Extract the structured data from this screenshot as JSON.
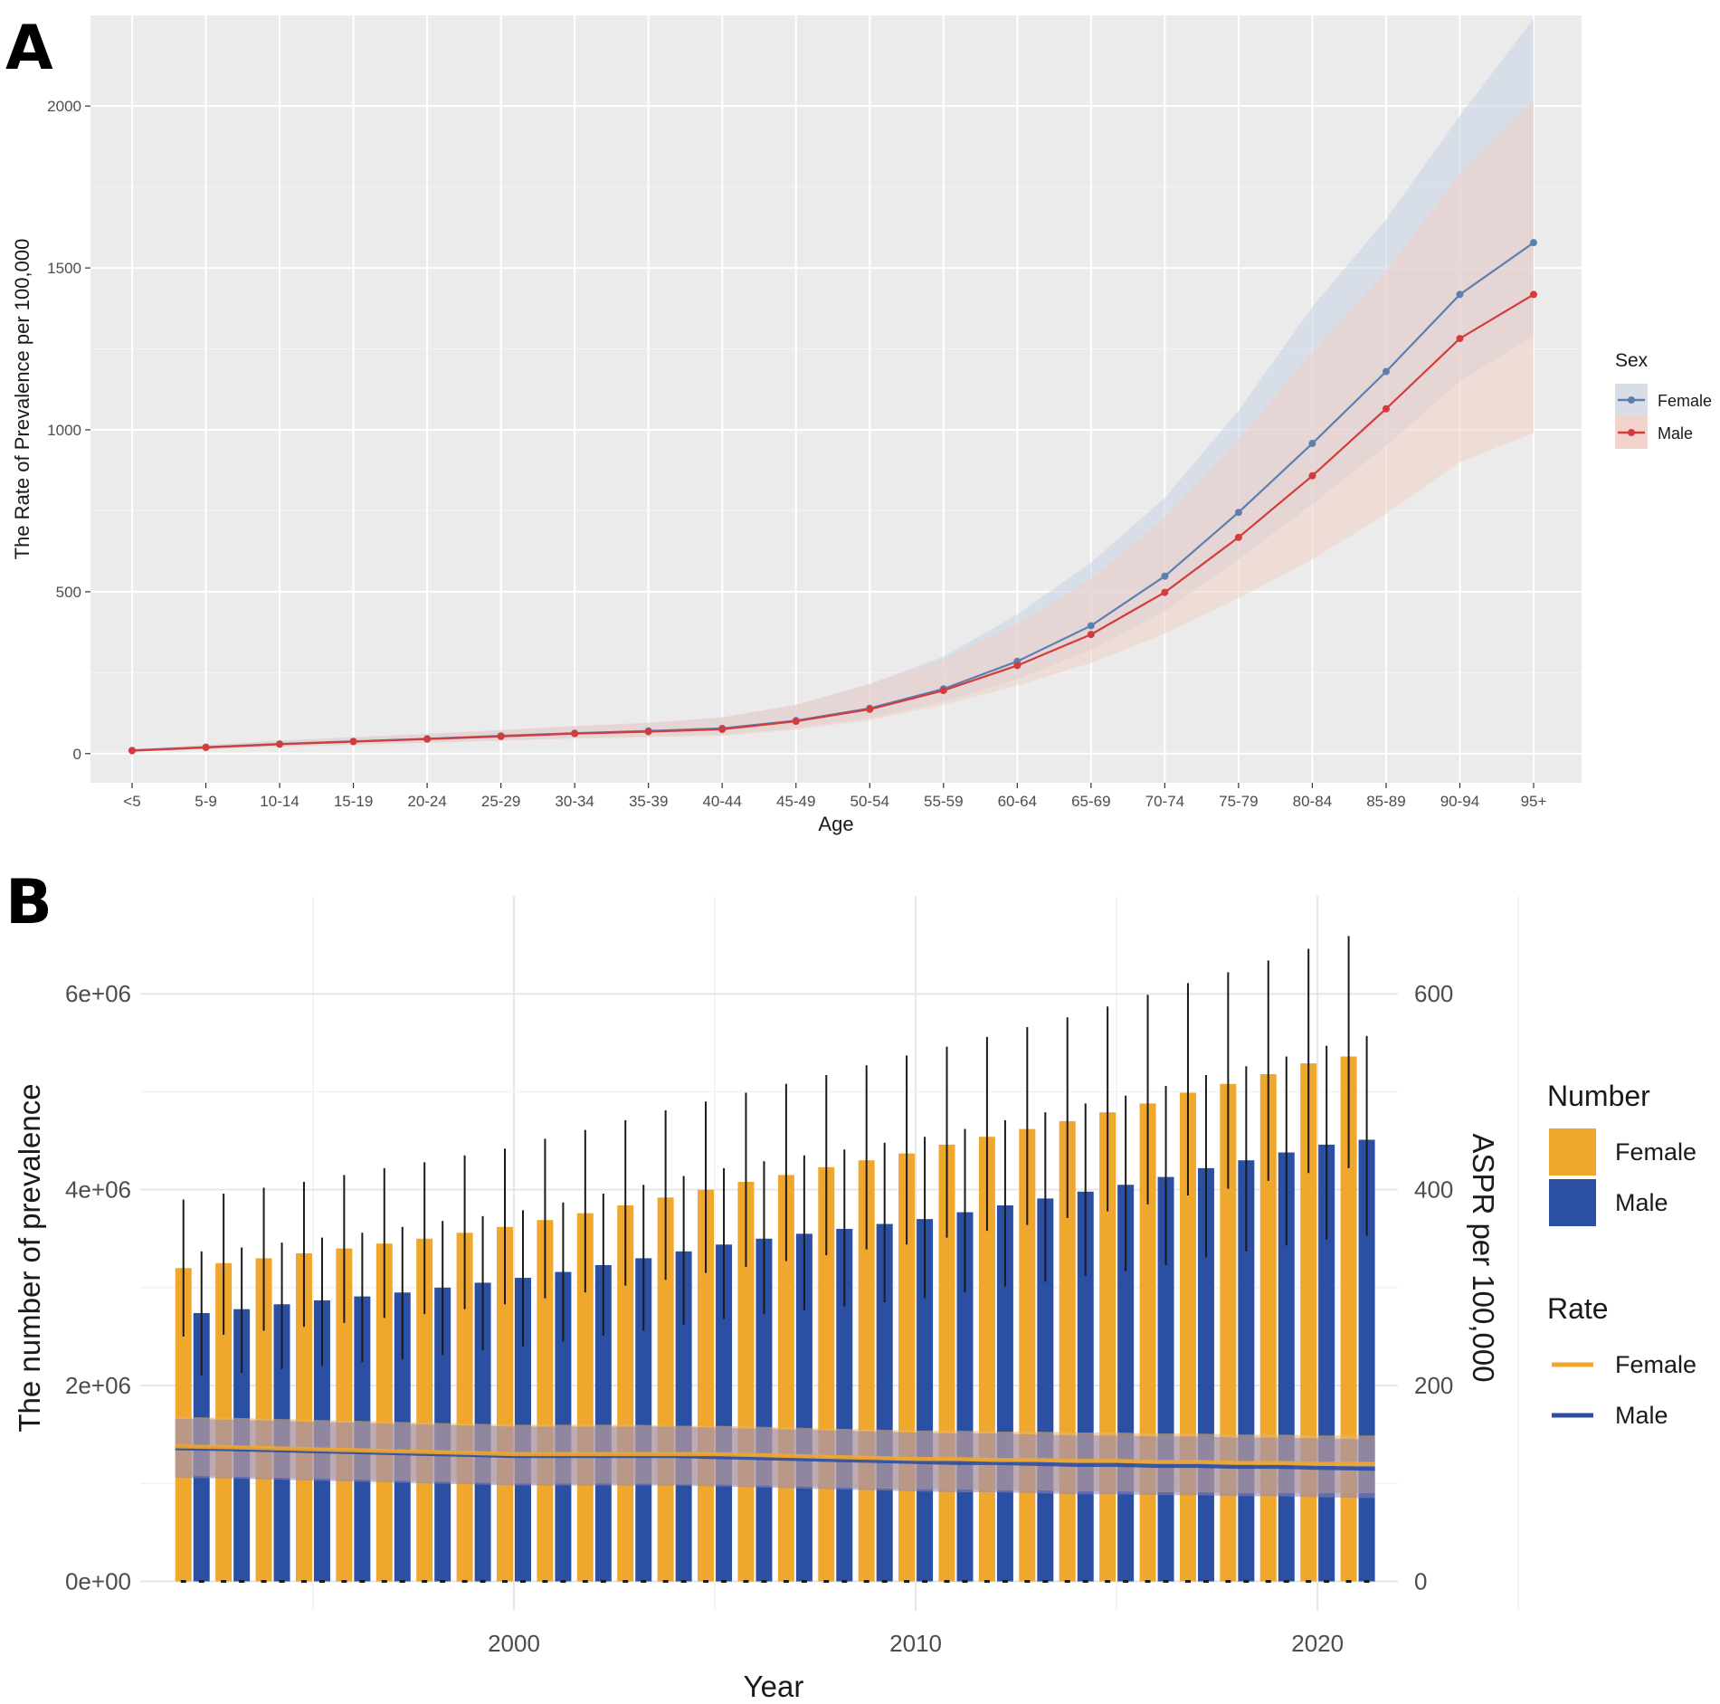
{
  "chart_data": [
    {
      "panel": "A",
      "type": "line",
      "xlabel": "Age",
      "ylabel": "The Rate of Prevalence per 100,000",
      "ylim": [
        -90,
        2280
      ],
      "yticks": [
        0,
        500,
        1000,
        1500,
        2000
      ],
      "ytick_labels": [
        "0",
        "500",
        "1000",
        "1500",
        "2000"
      ],
      "categories": [
        "<5",
        "5-9",
        "10-14",
        "15-19",
        "20-24",
        "25-29",
        "30-34",
        "35-39",
        "40-44",
        "45-49",
        "50-54",
        "55-59",
        "60-64",
        "65-69",
        "70-74",
        "75-79",
        "80-84",
        "85-89",
        "90-94",
        "95+"
      ],
      "legend_title": "Sex",
      "series": [
        {
          "name": "Female",
          "color": "#5b7fb1",
          "band_color": "#c7d3e6",
          "values": [
            10,
            20,
            30,
            38,
            46,
            55,
            63,
            70,
            78,
            102,
            140,
            200,
            285,
            395,
            548,
            745,
            958,
            1180,
            1418,
            1578
          ],
          "lower": [
            6,
            14,
            22,
            28,
            34,
            41,
            48,
            53,
            58,
            78,
            110,
            160,
            230,
            320,
            440,
            600,
            770,
            950,
            1150,
            1290
          ],
          "upper": [
            14,
            27,
            40,
            50,
            60,
            72,
            84,
            94,
            112,
            150,
            215,
            300,
            430,
            590,
            790,
            1060,
            1380,
            1650,
            1970,
            2270
          ]
        },
        {
          "name": "Male",
          "color": "#d43b3b",
          "band_color": "#f0cfc4",
          "values": [
            9,
            19,
            29,
            37,
            45,
            53,
            62,
            68,
            75,
            100,
            137,
            195,
            272,
            368,
            498,
            668,
            858,
            1065,
            1282,
            1418
          ],
          "lower": [
            6,
            13,
            21,
            27,
            33,
            40,
            46,
            51,
            55,
            74,
            104,
            150,
            210,
            280,
            370,
            480,
            600,
            740,
            900,
            990
          ],
          "upper": [
            14,
            27,
            40,
            51,
            62,
            73,
            86,
            96,
            112,
            152,
            215,
            290,
            400,
            540,
            730,
            970,
            1240,
            1490,
            1790,
            2020
          ]
        }
      ]
    },
    {
      "panel": "B",
      "type": "bar",
      "xlabel": "Year",
      "ylabel": "The number of prevalence",
      "ylabel_right": "ASPR per 100,000",
      "x": [
        1992,
        1993,
        1994,
        1995,
        1996,
        1997,
        1998,
        1999,
        2000,
        2001,
        2002,
        2003,
        2004,
        2005,
        2006,
        2007,
        2008,
        2009,
        2010,
        2011,
        2012,
        2013,
        2014,
        2015,
        2016,
        2017,
        2018,
        2019,
        2020,
        2021
      ],
      "xlim": [
        1990.7,
        2022.0
      ],
      "xticks": [
        2000,
        2010,
        2020
      ],
      "xtick_labels": [
        "2000",
        "2010",
        "2020"
      ],
      "ylim": [
        -300000,
        7000000
      ],
      "yticks": [
        0,
        2000000,
        4000000,
        6000000
      ],
      "ytick_labels": [
        "0e+00",
        "2e+06",
        "4e+06",
        "6e+06"
      ],
      "ylim_right": [
        -30,
        700
      ],
      "yticks_right": [
        0,
        200,
        400,
        600
      ],
      "ytick_labels_right": [
        "0",
        "200",
        "400",
        "600"
      ],
      "legend_number_title": "Number",
      "legend_rate_title": "Rate",
      "series": [
        {
          "name": "Female",
          "kind": "number",
          "color": "#f0a72e",
          "values": [
            3200000,
            3250000,
            3300000,
            3350000,
            3400000,
            3450000,
            3500000,
            3560000,
            3620000,
            3690000,
            3760000,
            3840000,
            3920000,
            4000000,
            4080000,
            4150000,
            4230000,
            4300000,
            4370000,
            4460000,
            4540000,
            4620000,
            4700000,
            4790000,
            4880000,
            4990000,
            5080000,
            5180000,
            5290000,
            5360000
          ],
          "err_low": [
            2500000,
            2520000,
            2560000,
            2600000,
            2640000,
            2690000,
            2730000,
            2780000,
            2830000,
            2890000,
            2950000,
            3020000,
            3080000,
            3150000,
            3210000,
            3270000,
            3330000,
            3390000,
            3440000,
            3510000,
            3580000,
            3640000,
            3710000,
            3780000,
            3850000,
            3940000,
            4010000,
            4090000,
            4170000,
            4220000
          ],
          "err_high": [
            3900000,
            3960000,
            4020000,
            4080000,
            4150000,
            4220000,
            4280000,
            4350000,
            4420000,
            4520000,
            4610000,
            4710000,
            4810000,
            4900000,
            4990000,
            5080000,
            5170000,
            5270000,
            5370000,
            5460000,
            5560000,
            5660000,
            5760000,
            5870000,
            5990000,
            6110000,
            6220000,
            6340000,
            6460000,
            6590000
          ]
        },
        {
          "name": "Male",
          "kind": "number",
          "color": "#2b4fa3",
          "values": [
            2740000,
            2780000,
            2830000,
            2870000,
            2910000,
            2950000,
            3000000,
            3050000,
            3100000,
            3160000,
            3230000,
            3300000,
            3370000,
            3440000,
            3500000,
            3550000,
            3600000,
            3650000,
            3700000,
            3770000,
            3840000,
            3910000,
            3980000,
            4050000,
            4130000,
            4220000,
            4300000,
            4380000,
            4460000,
            4510000
          ],
          "err_low": [
            2100000,
            2130000,
            2170000,
            2200000,
            2240000,
            2270000,
            2310000,
            2360000,
            2400000,
            2450000,
            2510000,
            2560000,
            2620000,
            2680000,
            2730000,
            2770000,
            2810000,
            2850000,
            2890000,
            2950000,
            3010000,
            3060000,
            3120000,
            3170000,
            3230000,
            3310000,
            3370000,
            3430000,
            3490000,
            3530000
          ],
          "err_high": [
            3370000,
            3410000,
            3460000,
            3510000,
            3560000,
            3620000,
            3680000,
            3730000,
            3790000,
            3870000,
            3960000,
            4050000,
            4140000,
            4220000,
            4290000,
            4350000,
            4410000,
            4480000,
            4540000,
            4620000,
            4710000,
            4790000,
            4880000,
            4960000,
            5060000,
            5170000,
            5260000,
            5360000,
            5470000,
            5570000
          ]
        },
        {
          "name": "Female",
          "kind": "rate",
          "axis": "right",
          "color": "#f0a72e",
          "band_color": "#e9b46a",
          "values": [
            138,
            137,
            136,
            135,
            134,
            133,
            132,
            131,
            130,
            130,
            130,
            130,
            130,
            130,
            129,
            128,
            127,
            126,
            125,
            125,
            124,
            124,
            123,
            123,
            122,
            122,
            121,
            121,
            120,
            120
          ],
          "lower": [
            108,
            107,
            106,
            105,
            104,
            103,
            102,
            101,
            100,
            100,
            100,
            100,
            99,
            99,
            98,
            97,
            96,
            95,
            94,
            94,
            93,
            93,
            92,
            92,
            91,
            91,
            90,
            90,
            90,
            90
          ],
          "upper": [
            168,
            167,
            166,
            165,
            164,
            163,
            162,
            161,
            160,
            160,
            160,
            160,
            159,
            159,
            158,
            157,
            156,
            155,
            154,
            154,
            153,
            153,
            152,
            152,
            151,
            151,
            150,
            150,
            149,
            149
          ]
        },
        {
          "name": "Male",
          "kind": "rate",
          "axis": "right",
          "color": "#2b4fa3",
          "band_color": "#8f86b8",
          "values": [
            136,
            135,
            134,
            133,
            132,
            131,
            130,
            129,
            128,
            128,
            128,
            128,
            128,
            127,
            126,
            125,
            124,
            123,
            122,
            121,
            121,
            120,
            119,
            119,
            118,
            118,
            117,
            117,
            116,
            115
          ],
          "lower": [
            106,
            105,
            104,
            103,
            102,
            101,
            100,
            99,
            98,
            98,
            98,
            98,
            98,
            97,
            96,
            95,
            94,
            93,
            92,
            91,
            91,
            90,
            89,
            89,
            88,
            88,
            87,
            87,
            86,
            85
          ],
          "upper": [
            166,
            165,
            164,
            163,
            162,
            161,
            160,
            159,
            158,
            158,
            158,
            158,
            158,
            157,
            156,
            155,
            154,
            153,
            152,
            151,
            151,
            150,
            149,
            149,
            148,
            148,
            147,
            147,
            146,
            145
          ]
        }
      ]
    }
  ]
}
